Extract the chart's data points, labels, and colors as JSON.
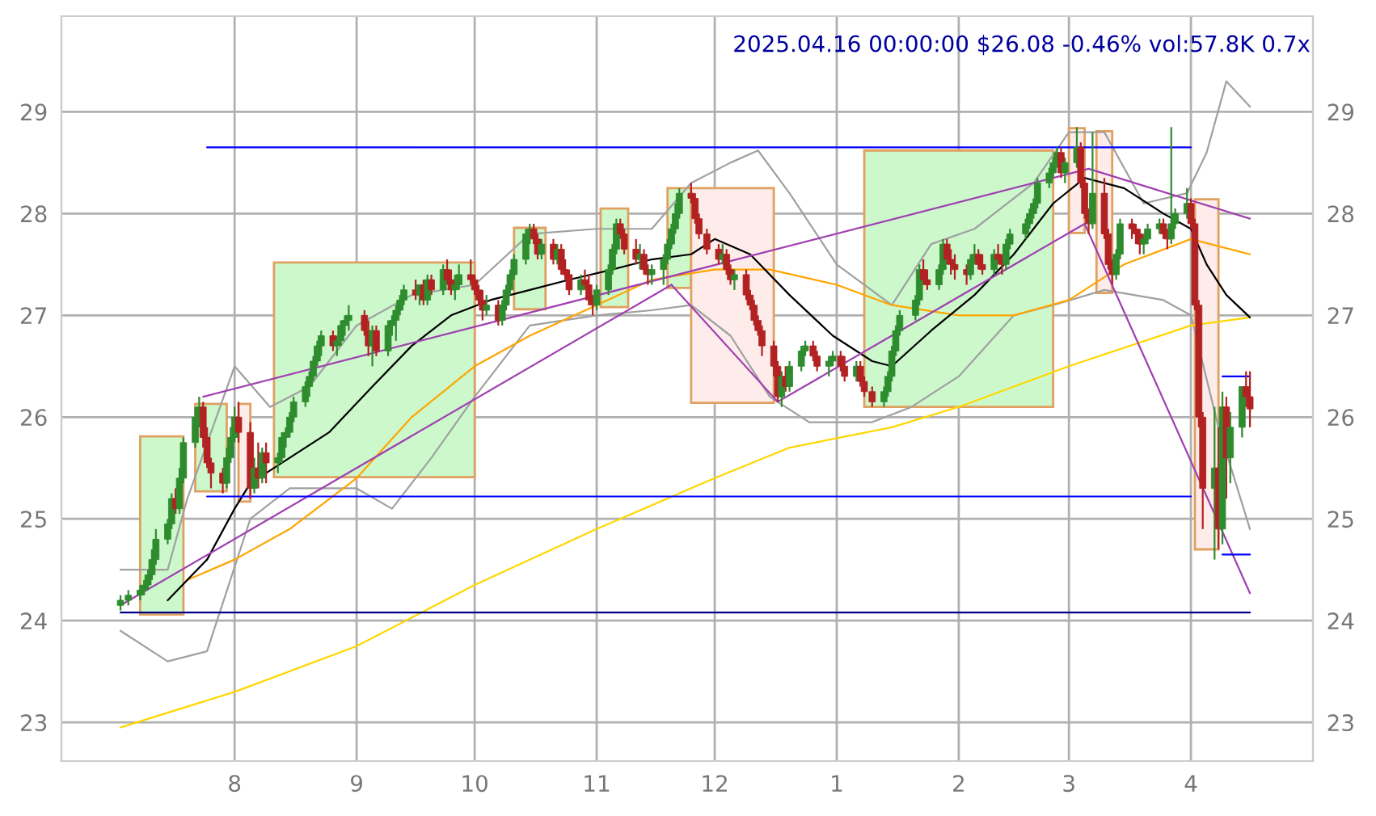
{
  "chart_data": {
    "type": "candlestick",
    "title": "2025.04.16 00:00:00 $26.08 -0.46% vol:57.8K 0.7x",
    "x": [
      "2024-07-03",
      "2024-07-05",
      "2024-07-08",
      "2024-07-09",
      "2024-07-10",
      "2024-07-11",
      "2024-07-12",
      "2024-07-15",
      "2024-07-16",
      "2024-07-17",
      "2024-07-18",
      "2024-07-19",
      "2024-07-22",
      "2024-07-23",
      "2024-07-24",
      "2024-07-25",
      "2024-07-26",
      "2024-07-29",
      "2024-07-30",
      "2024-07-31",
      "2024-08-01",
      "2024-08-02",
      "2024-08-05",
      "2024-08-06",
      "2024-08-07",
      "2024-08-08",
      "2024-08-09",
      "2024-08-12",
      "2024-08-13",
      "2024-08-14",
      "2024-08-15",
      "2024-08-16",
      "2024-08-19",
      "2024-08-20",
      "2024-08-21",
      "2024-08-22",
      "2024-08-23",
      "2024-08-26",
      "2024-08-27",
      "2024-08-28",
      "2024-08-29",
      "2024-08-30",
      "2024-09-03",
      "2024-09-04",
      "2024-09-05",
      "2024-09-06",
      "2024-09-09",
      "2024-09-10",
      "2024-09-11",
      "2024-09-12",
      "2024-09-13",
      "2024-09-16",
      "2024-09-17",
      "2024-09-18",
      "2024-09-19",
      "2024-09-20",
      "2024-09-23",
      "2024-09-24",
      "2024-09-25",
      "2024-09-26",
      "2024-09-27",
      "2024-09-30",
      "2024-10-01",
      "2024-10-02",
      "2024-10-03",
      "2024-10-04",
      "2024-10-07",
      "2024-10-08",
      "2024-10-09",
      "2024-10-10",
      "2024-10-11",
      "2024-10-14",
      "2024-10-15",
      "2024-10-16",
      "2024-10-17",
      "2024-10-18",
      "2024-10-21",
      "2024-10-22",
      "2024-10-23",
      "2024-10-24",
      "2024-10-25",
      "2024-10-28",
      "2024-10-29",
      "2024-10-30",
      "2024-10-31",
      "2024-11-01",
      "2024-11-04",
      "2024-11-05",
      "2024-11-06",
      "2024-11-07",
      "2024-11-08",
      "2024-11-11",
      "2024-11-12",
      "2024-11-13",
      "2024-11-14",
      "2024-11-15",
      "2024-11-18",
      "2024-11-19",
      "2024-11-20",
      "2024-11-21",
      "2024-11-22",
      "2024-11-25",
      "2024-11-26",
      "2024-11-27",
      "2024-11-29",
      "2024-12-02",
      "2024-12-03",
      "2024-12-04",
      "2024-12-05",
      "2024-12-06",
      "2024-12-09",
      "2024-12-10",
      "2024-12-11",
      "2024-12-12",
      "2024-12-13",
      "2024-12-16",
      "2024-12-17",
      "2024-12-18",
      "2024-12-19",
      "2024-12-20",
      "2024-12-23",
      "2024-12-24",
      "2024-12-26",
      "2024-12-27",
      "2024-12-30",
      "2024-12-31",
      "2025-01-02",
      "2025-01-03",
      "2025-01-06",
      "2025-01-07",
      "2025-01-08",
      "2025-01-10",
      "2025-01-13",
      "2025-01-14",
      "2025-01-15",
      "2025-01-16",
      "2025-01-17",
      "2025-01-21",
      "2025-01-22",
      "2025-01-23",
      "2025-01-24",
      "2025-01-27",
      "2025-01-28",
      "2025-01-29",
      "2025-01-30",
      "2025-01-31",
      "2025-02-03",
      "2025-02-04",
      "2025-02-05",
      "2025-02-06",
      "2025-02-07",
      "2025-02-10",
      "2025-02-11",
      "2025-02-12",
      "2025-02-13",
      "2025-02-14",
      "2025-02-18",
      "2025-02-19",
      "2025-02-20",
      "2025-02-21",
      "2025-02-24",
      "2025-02-25",
      "2025-02-26",
      "2025-02-27",
      "2025-02-28",
      "2025-03-03",
      "2025-03-04",
      "2025-03-05",
      "2025-03-06",
      "2025-03-07",
      "2025-03-10",
      "2025-03-11",
      "2025-03-12",
      "2025-03-13",
      "2025-03-14",
      "2025-03-17",
      "2025-03-18",
      "2025-03-19",
      "2025-03-20",
      "2025-03-21",
      "2025-03-24",
      "2025-03-25",
      "2025-03-26",
      "2025-03-27",
      "2025-03-28",
      "2025-03-31",
      "2025-04-01",
      "2025-04-02",
      "2025-04-03",
      "2025-04-04",
      "2025-04-07",
      "2025-04-08",
      "2025-04-09",
      "2025-04-10",
      "2025-04-11",
      "2025-04-14",
      "2025-04-15",
      "2025-04-16"
    ],
    "ohlc": [
      [
        24.15,
        24.25,
        24.1,
        24.2
      ],
      [
        24.2,
        24.3,
        24.15,
        24.25
      ],
      [
        24.25,
        24.35,
        24.2,
        24.3
      ],
      [
        24.3,
        24.4,
        24.25,
        24.35
      ],
      [
        24.35,
        24.5,
        24.3,
        24.45
      ],
      [
        24.45,
        24.7,
        24.4,
        24.6
      ],
      [
        24.6,
        24.9,
        24.55,
        24.8
      ],
      [
        24.8,
        25.0,
        24.75,
        24.95
      ],
      [
        24.95,
        25.25,
        24.9,
        25.2
      ],
      [
        25.2,
        25.3,
        25.05,
        25.1
      ],
      [
        25.1,
        25.5,
        25.05,
        25.4
      ],
      [
        25.4,
        25.8,
        25.35,
        25.75
      ],
      [
        25.75,
        26.1,
        25.7,
        26.0
      ],
      [
        26.0,
        26.2,
        25.9,
        26.1
      ],
      [
        26.1,
        26.15,
        25.7,
        25.8
      ],
      [
        25.8,
        25.9,
        25.5,
        25.55
      ],
      [
        25.55,
        25.6,
        25.3,
        25.45
      ],
      [
        25.45,
        25.5,
        25.25,
        25.35
      ],
      [
        25.35,
        25.7,
        25.3,
        25.6
      ],
      [
        25.6,
        25.9,
        25.55,
        25.8
      ],
      [
        25.8,
        26.1,
        25.75,
        26.0
      ],
      [
        26.0,
        26.15,
        25.75,
        25.85
      ],
      [
        25.85,
        25.95,
        25.2,
        25.3
      ],
      [
        25.3,
        25.6,
        25.25,
        25.5
      ],
      [
        25.5,
        25.75,
        25.3,
        25.4
      ],
      [
        25.4,
        25.7,
        25.35,
        25.65
      ],
      [
        25.65,
        25.75,
        25.35,
        25.55
      ],
      [
        25.55,
        25.65,
        25.45,
        25.6
      ],
      [
        25.6,
        25.85,
        25.55,
        25.8
      ],
      [
        25.8,
        25.9,
        25.7,
        25.85
      ],
      [
        25.85,
        26.05,
        25.8,
        26.0
      ],
      [
        26.0,
        26.2,
        25.95,
        26.15
      ],
      [
        26.15,
        26.35,
        26.1,
        26.3
      ],
      [
        26.3,
        26.45,
        26.2,
        26.4
      ],
      [
        26.4,
        26.6,
        26.35,
        26.55
      ],
      [
        26.55,
        26.75,
        26.5,
        26.7
      ],
      [
        26.7,
        26.85,
        26.6,
        26.8
      ],
      [
        26.8,
        26.85,
        26.65,
        26.7
      ],
      [
        26.7,
        26.8,
        26.6,
        26.75
      ],
      [
        26.75,
        26.95,
        26.7,
        26.9
      ],
      [
        26.9,
        27.0,
        26.8,
        26.95
      ],
      [
        26.95,
        27.1,
        26.85,
        27.0
      ],
      [
        27.0,
        27.05,
        26.8,
        26.85
      ],
      [
        26.85,
        26.95,
        26.6,
        26.7
      ],
      [
        26.7,
        26.9,
        26.5,
        26.85
      ],
      [
        26.85,
        26.9,
        26.6,
        26.65
      ],
      [
        26.65,
        26.95,
        26.6,
        26.9
      ],
      [
        26.9,
        27.0,
        26.8,
        26.95
      ],
      [
        26.95,
        27.1,
        26.75,
        27.05
      ],
      [
        27.05,
        27.2,
        27.0,
        27.15
      ],
      [
        27.15,
        27.3,
        27.1,
        27.25
      ],
      [
        27.25,
        27.35,
        27.15,
        27.2
      ],
      [
        27.2,
        27.3,
        27.1,
        27.3
      ],
      [
        27.3,
        27.35,
        27.1,
        27.15
      ],
      [
        27.15,
        27.4,
        27.1,
        27.35
      ],
      [
        27.35,
        27.4,
        27.2,
        27.25
      ],
      [
        27.25,
        27.5,
        27.2,
        27.45
      ],
      [
        27.45,
        27.55,
        27.3,
        27.35
      ],
      [
        27.35,
        27.45,
        27.2,
        27.25
      ],
      [
        27.25,
        27.4,
        27.15,
        27.3
      ],
      [
        27.3,
        27.5,
        27.25,
        27.4
      ],
      [
        27.4,
        27.55,
        27.3,
        27.35
      ],
      [
        27.35,
        27.4,
        27.2,
        27.25
      ],
      [
        27.25,
        27.3,
        27.1,
        27.15
      ],
      [
        27.15,
        27.25,
        26.95,
        27.05
      ],
      [
        27.05,
        27.2,
        27.0,
        27.1
      ],
      [
        27.1,
        27.15,
        26.9,
        26.95
      ],
      [
        26.95,
        27.15,
        26.9,
        27.1
      ],
      [
        27.1,
        27.3,
        27.05,
        27.25
      ],
      [
        27.25,
        27.45,
        27.2,
        27.4
      ],
      [
        27.4,
        27.6,
        27.35,
        27.55
      ],
      [
        27.55,
        27.85,
        27.5,
        27.8
      ],
      [
        27.8,
        27.9,
        27.7,
        27.85
      ],
      [
        27.85,
        27.9,
        27.7,
        27.75
      ],
      [
        27.75,
        27.8,
        27.55,
        27.6
      ],
      [
        27.6,
        27.75,
        27.55,
        27.7
      ],
      [
        27.7,
        27.75,
        27.5,
        27.55
      ],
      [
        27.55,
        27.7,
        27.5,
        27.65
      ],
      [
        27.65,
        27.7,
        27.4,
        27.45
      ],
      [
        27.45,
        27.55,
        27.35,
        27.4
      ],
      [
        27.4,
        27.45,
        27.2,
        27.25
      ],
      [
        27.25,
        27.4,
        27.2,
        27.35
      ],
      [
        27.35,
        27.45,
        27.25,
        27.3
      ],
      [
        27.3,
        27.4,
        27.1,
        27.15
      ],
      [
        27.15,
        27.2,
        27.0,
        27.1
      ],
      [
        27.1,
        27.3,
        27.05,
        27.25
      ],
      [
        27.25,
        27.5,
        27.2,
        27.45
      ],
      [
        27.45,
        27.7,
        27.4,
        27.65
      ],
      [
        27.65,
        27.95,
        27.6,
        27.9
      ],
      [
        27.9,
        27.95,
        27.75,
        27.8
      ],
      [
        27.8,
        27.85,
        27.6,
        27.65
      ],
      [
        27.65,
        27.75,
        27.5,
        27.55
      ],
      [
        27.55,
        27.7,
        27.45,
        27.6
      ],
      [
        27.6,
        27.65,
        27.4,
        27.45
      ],
      [
        27.45,
        27.5,
        27.3,
        27.4
      ],
      [
        27.4,
        27.5,
        27.3,
        27.45
      ],
      [
        27.45,
        27.6,
        27.3,
        27.55
      ],
      [
        27.55,
        27.75,
        27.5,
        27.7
      ],
      [
        27.7,
        27.9,
        27.65,
        27.85
      ],
      [
        27.85,
        28.1,
        27.8,
        28.0
      ],
      [
        28.0,
        28.25,
        27.95,
        28.2
      ],
      [
        28.2,
        28.3,
        28.1,
        28.15
      ],
      [
        28.15,
        28.2,
        27.9,
        27.95
      ],
      [
        27.95,
        28.0,
        27.75,
        27.8
      ],
      [
        27.8,
        27.85,
        27.6,
        27.65
      ],
      [
        27.65,
        27.7,
        27.5,
        27.55
      ],
      [
        27.55,
        27.7,
        27.5,
        27.6
      ],
      [
        27.6,
        27.65,
        27.4,
        27.45
      ],
      [
        27.45,
        27.5,
        27.3,
        27.35
      ],
      [
        27.35,
        27.45,
        27.25,
        27.4
      ],
      [
        27.4,
        27.45,
        27.15,
        27.2
      ],
      [
        27.2,
        27.25,
        27.05,
        27.1
      ],
      [
        27.1,
        27.15,
        26.9,
        26.95
      ],
      [
        26.95,
        27.0,
        26.8,
        26.85
      ],
      [
        26.85,
        26.9,
        26.6,
        26.7
      ],
      [
        26.7,
        26.75,
        26.4,
        26.5
      ],
      [
        26.5,
        26.55,
        26.15,
        26.2
      ],
      [
        26.2,
        26.45,
        26.1,
        26.4
      ],
      [
        26.4,
        26.5,
        26.25,
        26.3
      ],
      [
        26.3,
        26.55,
        26.25,
        26.5
      ],
      [
        26.5,
        26.7,
        26.45,
        26.65
      ],
      [
        26.65,
        26.75,
        26.6,
        26.7
      ],
      [
        26.7,
        26.75,
        26.55,
        26.6
      ],
      [
        26.6,
        26.65,
        26.45,
        26.5
      ],
      [
        26.5,
        26.6,
        26.4,
        26.55
      ],
      [
        26.55,
        26.65,
        26.5,
        26.6
      ],
      [
        26.6,
        26.65,
        26.45,
        26.5
      ],
      [
        26.5,
        26.6,
        26.35,
        26.4
      ],
      [
        26.4,
        26.55,
        26.35,
        26.5
      ],
      [
        26.5,
        26.55,
        26.3,
        26.35
      ],
      [
        26.35,
        26.4,
        26.2,
        26.25
      ],
      [
        26.25,
        26.3,
        26.1,
        26.15
      ],
      [
        26.15,
        26.3,
        26.1,
        26.25
      ],
      [
        26.25,
        26.45,
        26.2,
        26.4
      ],
      [
        26.4,
        26.7,
        26.35,
        26.65
      ],
      [
        26.65,
        26.9,
        26.6,
        26.85
      ],
      [
        26.85,
        27.05,
        26.8,
        27.0
      ],
      [
        27.0,
        27.2,
        26.95,
        27.15
      ],
      [
        27.15,
        27.5,
        27.1,
        27.45
      ],
      [
        27.45,
        27.55,
        27.3,
        27.35
      ],
      [
        27.35,
        27.45,
        27.25,
        27.3
      ],
      [
        27.3,
        27.5,
        27.25,
        27.45
      ],
      [
        27.45,
        27.75,
        27.4,
        27.7
      ],
      [
        27.7,
        27.75,
        27.5,
        27.55
      ],
      [
        27.55,
        27.65,
        27.4,
        27.5
      ],
      [
        27.5,
        27.6,
        27.35,
        27.45
      ],
      [
        27.45,
        27.5,
        27.3,
        27.4
      ],
      [
        27.4,
        27.6,
        27.35,
        27.55
      ],
      [
        27.55,
        27.7,
        27.5,
        27.6
      ],
      [
        27.6,
        27.65,
        27.45,
        27.5
      ],
      [
        27.5,
        27.6,
        27.4,
        27.45
      ],
      [
        27.45,
        27.65,
        27.4,
        27.6
      ],
      [
        27.6,
        27.7,
        27.5,
        27.55
      ],
      [
        27.55,
        27.6,
        27.4,
        27.5
      ],
      [
        27.5,
        27.75,
        27.45,
        27.7
      ],
      [
        27.7,
        27.85,
        27.65,
        27.8
      ],
      [
        27.8,
        27.95,
        27.75,
        27.9
      ],
      [
        27.9,
        28.05,
        27.85,
        28.0
      ],
      [
        28.0,
        28.15,
        27.95,
        28.1
      ],
      [
        28.1,
        28.35,
        28.05,
        28.3
      ],
      [
        28.3,
        28.45,
        28.25,
        28.4
      ],
      [
        28.4,
        28.55,
        28.35,
        28.5
      ],
      [
        28.5,
        28.65,
        28.45,
        28.6
      ],
      [
        28.6,
        28.65,
        28.35,
        28.4
      ],
      [
        28.4,
        28.55,
        28.3,
        28.5
      ],
      [
        28.5,
        28.85,
        28.45,
        28.65
      ],
      [
        28.65,
        28.7,
        28.25,
        28.3
      ],
      [
        28.3,
        28.35,
        27.95,
        28.0
      ],
      [
        28.0,
        28.05,
        27.8,
        27.9
      ],
      [
        27.9,
        28.8,
        27.85,
        28.2
      ],
      [
        28.2,
        28.35,
        27.75,
        27.8
      ],
      [
        27.8,
        27.85,
        27.45,
        27.5
      ],
      [
        27.5,
        27.55,
        27.3,
        27.4
      ],
      [
        27.4,
        27.65,
        27.35,
        27.6
      ],
      [
        27.6,
        27.95,
        27.55,
        27.9
      ],
      [
        27.9,
        27.95,
        27.75,
        27.85
      ],
      [
        27.85,
        27.9,
        27.7,
        27.8
      ],
      [
        27.8,
        27.85,
        27.6,
        27.7
      ],
      [
        27.7,
        27.8,
        27.6,
        27.75
      ],
      [
        27.75,
        27.9,
        27.7,
        27.85
      ],
      [
        27.85,
        27.95,
        27.8,
        27.9
      ],
      [
        27.9,
        27.95,
        27.75,
        27.8
      ],
      [
        27.8,
        27.85,
        27.65,
        27.75
      ],
      [
        27.75,
        28.85,
        27.7,
        27.9
      ],
      [
        27.9,
        28.05,
        27.85,
        28.0
      ],
      [
        28.0,
        28.25,
        27.95,
        28.1
      ],
      [
        28.1,
        28.15,
        27.85,
        27.9
      ],
      [
        27.9,
        27.95,
        27.05,
        27.1
      ],
      [
        27.1,
        27.15,
        25.9,
        26.0
      ],
      [
        26.0,
        26.05,
        24.9,
        25.3
      ],
      [
        25.3,
        26.1,
        24.6,
        25.5
      ],
      [
        25.5,
        25.9,
        24.7,
        24.9
      ],
      [
        24.9,
        26.25,
        24.75,
        26.1
      ],
      [
        26.1,
        26.2,
        25.2,
        25.6
      ],
      [
        25.6,
        26.05,
        25.35,
        25.9
      ],
      [
        25.9,
        26.3,
        25.8,
        26.3
      ],
      [
        26.3,
        26.45,
        26.1,
        26.2
      ],
      [
        26.2,
        26.45,
        25.9,
        26.08
      ]
    ],
    "series": [
      {
        "type": "area",
        "x": [
          "2024-07-08",
          "2024-07-08",
          "2024-07-19",
          "2024-07-19"
        ],
        "values": [
          24.06,
          25.81,
          25.81,
          24.06
        ],
        "color": "#ccf8cc"
      },
      {
        "type": "area",
        "x": [
          "2024-07-22",
          "2024-07-22",
          "2024-07-30",
          "2024-07-30"
        ],
        "values": [
          25.27,
          26.13,
          26.13,
          25.27
        ],
        "color": "#ccf8cc"
      },
      {
        "type": "area",
        "x": [
          "2024-08-02",
          "2024-08-02",
          "2024-08-05",
          "2024-08-05"
        ],
        "values": [
          25.17,
          26.13,
          26.13,
          25.17
        ],
        "color": "#fdecea"
      },
      {
        "type": "area",
        "x": [
          "2024-08-11",
          "2024-08-11",
          "2024-10-01",
          "2024-10-01"
        ],
        "values": [
          25.41,
          27.52,
          27.52,
          25.41
        ],
        "color": "#ccf8cc"
      },
      {
        "type": "area",
        "x": [
          "2024-10-11",
          "2024-10-11",
          "2024-10-19",
          "2024-10-19"
        ],
        "values": [
          27.06,
          27.86,
          27.86,
          27.06
        ],
        "color": "#ccf8cc"
      },
      {
        "type": "area",
        "x": [
          "2024-11-02",
          "2024-11-02",
          "2024-11-09",
          "2024-11-09"
        ],
        "values": [
          27.08,
          28.05,
          28.05,
          27.08
        ],
        "color": "#ccf8cc"
      },
      {
        "type": "area",
        "x": [
          "2024-11-19",
          "2024-11-19",
          "2024-11-25",
          "2024-11-25"
        ],
        "values": [
          27.27,
          28.25,
          28.25,
          27.27
        ],
        "color": "#ccf8cc"
      },
      {
        "type": "area",
        "x": [
          "2024-11-25",
          "2024-11-25",
          "2024-12-16",
          "2024-12-16"
        ],
        "values": [
          26.14,
          28.25,
          28.25,
          26.14
        ],
        "color": "#fdecea"
      },
      {
        "type": "area",
        "x": [
          "2025-01-08",
          "2025-01-08",
          "2025-02-25",
          "2025-02-25"
        ],
        "values": [
          26.1,
          28.62,
          28.62,
          26.1
        ],
        "color": "#ccf8cc"
      },
      {
        "type": "area",
        "x": [
          "2025-03-01",
          "2025-03-01",
          "2025-03-05",
          "2025-03-05"
        ],
        "values": [
          27.81,
          28.84,
          28.84,
          27.81
        ],
        "color": "#fdecea"
      },
      {
        "type": "area",
        "x": [
          "2025-03-08",
          "2025-03-08",
          "2025-03-12",
          "2025-03-12"
        ],
        "values": [
          27.22,
          28.81,
          28.81,
          27.22
        ],
        "color": "#fdecea"
      },
      {
        "type": "area",
        "x": [
          "2025-04-02",
          "2025-04-02",
          "2025-04-08",
          "2025-04-08"
        ],
        "values": [
          24.7,
          28.14,
          28.14,
          24.7
        ],
        "color": "#fdecea"
      },
      {
        "type": "line",
        "x": [
          "2024-07-03",
          "2024-07-15",
          "2024-07-20",
          "2024-08-01",
          "2024-08-10",
          "2024-08-20",
          "2024-09-01",
          "2024-09-15",
          "2024-10-01",
          "2024-10-15",
          "2024-11-01",
          "2024-11-15",
          "2024-11-25",
          "2024-12-05",
          "2024-12-12",
          "2024-12-20",
          "2025-01-01",
          "2025-01-15",
          "2025-01-25",
          "2025-02-05",
          "2025-02-20",
          "2025-03-01",
          "2025-03-10",
          "2025-03-20",
          "2025-03-31",
          "2025-04-05",
          "2025-04-10",
          "2025-04-16"
        ],
        "values": [
          24.5,
          24.5,
          25.2,
          26.5,
          26.1,
          26.3,
          26.9,
          27.2,
          27.3,
          27.8,
          27.85,
          27.85,
          28.3,
          28.5,
          28.62,
          28.2,
          27.5,
          27.1,
          27.7,
          27.85,
          28.3,
          28.8,
          28.8,
          28.1,
          28.2,
          28.6,
          29.3,
          29.05
        ],
        "color": "#a0a0a0"
      },
      {
        "type": "line",
        "x": [
          "2024-07-03",
          "2024-07-15",
          "2024-07-25",
          "2024-08-05",
          "2024-08-15",
          "2024-09-01",
          "2024-09-10",
          "2024-09-20",
          "2024-10-01",
          "2024-10-15",
          "2024-11-01",
          "2024-11-15",
          "2024-11-25",
          "2024-12-05",
          "2024-12-15",
          "2024-12-25",
          "2025-01-10",
          "2025-01-20",
          "2025-02-01",
          "2025-02-15",
          "2025-02-25",
          "2025-03-10",
          "2025-03-25",
          "2025-04-01",
          "2025-04-08",
          "2025-04-16"
        ],
        "values": [
          23.9,
          23.6,
          23.7,
          25.0,
          25.3,
          25.3,
          25.1,
          25.6,
          26.2,
          26.9,
          27.0,
          27.05,
          27.1,
          26.8,
          26.2,
          25.95,
          25.95,
          26.1,
          26.4,
          27.0,
          27.1,
          27.25,
          27.15,
          27.0,
          25.9,
          24.9
        ],
        "color": "#a0a0a0"
      },
      {
        "type": "line",
        "x": [
          "2024-07-03",
          "2024-08-01",
          "2024-09-01",
          "2024-10-01",
          "2024-11-01",
          "2024-12-01",
          "2024-12-20",
          "2025-01-15",
          "2025-02-01",
          "2025-03-01",
          "2025-04-01",
          "2025-04-16"
        ],
        "values": [
          22.95,
          23.3,
          23.75,
          24.35,
          24.9,
          25.4,
          25.7,
          25.9,
          26.1,
          26.5,
          26.9,
          26.98
        ],
        "color": "#ffd700"
      },
      {
        "type": "line",
        "x": [
          "2024-07-20",
          "2024-08-01",
          "2024-08-15",
          "2024-09-01",
          "2024-09-15",
          "2024-10-01",
          "2024-10-15",
          "2024-11-01",
          "2024-11-15",
          "2024-12-01",
          "2024-12-15",
          "2025-01-01",
          "2025-01-15",
          "2025-02-01",
          "2025-02-15",
          "2025-03-01",
          "2025-03-15",
          "2025-04-01",
          "2025-04-16"
        ],
        "values": [
          24.4,
          24.6,
          24.9,
          25.4,
          26.0,
          26.5,
          26.8,
          27.1,
          27.35,
          27.45,
          27.45,
          27.3,
          27.1,
          27.0,
          27.0,
          27.15,
          27.5,
          27.75,
          27.6
        ],
        "color": "#ffa500"
      },
      {
        "type": "line",
        "x": [
          "2024-07-15",
          "2024-07-25",
          "2024-08-01",
          "2024-08-05",
          "2024-08-15",
          "2024-08-25",
          "2024-09-05",
          "2024-09-15",
          "2024-09-25",
          "2024-10-05",
          "2024-10-15",
          "2024-10-25",
          "2024-11-05",
          "2024-11-15",
          "2024-11-25",
          "2024-12-01",
          "2024-12-10",
          "2024-12-20",
          "2024-12-31",
          "2025-01-10",
          "2025-01-15",
          "2025-01-25",
          "2025-02-05",
          "2025-02-15",
          "2025-02-25",
          "2025-03-05",
          "2025-03-15",
          "2025-03-25",
          "2025-04-01",
          "2025-04-05",
          "2025-04-10",
          "2025-04-16"
        ],
        "values": [
          24.2,
          24.6,
          25.1,
          25.35,
          25.6,
          25.85,
          26.3,
          26.7,
          27.0,
          27.15,
          27.25,
          27.35,
          27.45,
          27.55,
          27.6,
          27.75,
          27.6,
          27.2,
          26.8,
          26.55,
          26.5,
          26.85,
          27.2,
          27.6,
          28.1,
          28.35,
          28.25,
          28.0,
          27.85,
          27.5,
          27.2,
          26.98
        ],
        "color": "#000000"
      },
      {
        "type": "line",
        "x": [
          "2024-07-03",
          "2024-11-20"
        ],
        "values": [
          24.15,
          27.3
        ],
        "color": "#a040b0"
      },
      {
        "type": "line",
        "x": [
          "2024-07-24",
          "2025-03-06",
          "2025-04-16"
        ],
        "values": [
          26.2,
          28.44,
          27.95
        ],
        "color": "#a040b0"
      },
      {
        "type": "line",
        "x": [
          "2024-11-20",
          "2024-12-17",
          "2025-03-05",
          "2025-04-16"
        ],
        "values": [
          27.3,
          26.15,
          27.9,
          24.27
        ],
        "color": "#a040b0"
      },
      {
        "type": "line",
        "x": [
          "2024-07-25",
          "2025-04-01"
        ],
        "values": [
          28.65,
          28.65
        ],
        "color": "#0000ff"
      },
      {
        "type": "line",
        "x": [
          "2024-07-25",
          "2025-04-01"
        ],
        "values": [
          25.22,
          25.22
        ],
        "color": "#0000ff"
      },
      {
        "type": "line",
        "x": [
          "2024-07-03",
          "2025-04-16"
        ],
        "values": [
          24.08,
          24.08
        ],
        "color": "#00008b"
      },
      {
        "type": "line",
        "x": [
          "2025-04-09",
          "2025-04-16"
        ],
        "values": [
          26.4,
          26.4
        ],
        "color": "#0000ff"
      },
      {
        "type": "line",
        "x": [
          "2025-04-09",
          "2025-04-16"
        ],
        "values": [
          24.65,
          24.65
        ],
        "color": "#0000ff"
      }
    ],
    "xlim": [
      "2024-06-18",
      "2025-05-02"
    ],
    "xticks": [
      {
        "value": "2024-08-01",
        "label": "8"
      },
      {
        "value": "2024-09-01",
        "label": "9"
      },
      {
        "value": "2024-10-01",
        "label": "10"
      },
      {
        "value": "2024-11-01",
        "label": "11"
      },
      {
        "value": "2024-12-01",
        "label": "12"
      },
      {
        "value": "2025-01-01",
        "label": "1"
      },
      {
        "value": "2025-02-01",
        "label": "2"
      },
      {
        "value": "2025-03-01",
        "label": "3"
      },
      {
        "value": "2025-04-01",
        "label": "4"
      }
    ],
    "ylim": [
      22.62,
      29.94
    ],
    "yticks": [
      23,
      24,
      25,
      26,
      27,
      28,
      29
    ],
    "y2lim": [
      22.62,
      29.94
    ],
    "y2ticks": [
      23,
      24,
      25,
      26,
      27,
      28,
      29
    ],
    "grid": true
  }
}
